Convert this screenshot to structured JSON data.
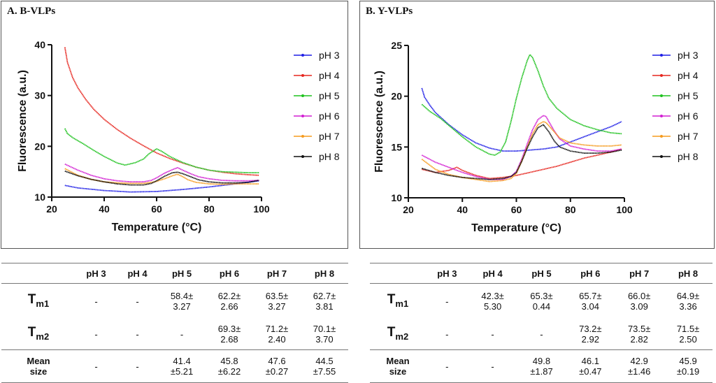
{
  "chart_data": [
    {
      "id": "A",
      "type": "line",
      "title": "A. B-VLPs",
      "xlabel": "Temperature (°C)",
      "ylabel": "Fluorescence (a.u.)",
      "xlim": [
        20,
        100
      ],
      "ylim": [
        10,
        40
      ],
      "xticks": [
        "20",
        "40",
        "60",
        "80",
        "100"
      ],
      "yticks": [
        "10",
        "20",
        "30",
        "40"
      ],
      "series": [
        {
          "name": "pH 3",
          "color": "#1f1fe6",
          "x": [
            25,
            30,
            40,
            50,
            60,
            70,
            80,
            90,
            99
          ],
          "y": [
            12.3,
            11.8,
            11.3,
            11.0,
            11.1,
            11.5,
            12.0,
            12.6,
            13.2
          ]
        },
        {
          "name": "pH 4",
          "color": "#e6261f",
          "x": [
            25,
            26,
            28,
            30,
            33,
            36,
            40,
            45,
            50,
            55,
            60,
            65,
            70,
            75,
            80,
            85,
            90,
            95,
            99
          ],
          "y": [
            39.5,
            36.5,
            33.5,
            31.5,
            29.2,
            27.3,
            25.3,
            23.3,
            21.6,
            20.1,
            18.7,
            17.6,
            16.7,
            15.9,
            15.3,
            14.9,
            14.6,
            14.4,
            14.3
          ]
        },
        {
          "name": "pH 5",
          "color": "#1fc21f",
          "x": [
            25,
            26,
            28,
            32,
            36,
            40,
            45,
            48,
            52,
            55,
            57,
            60,
            62,
            65,
            70,
            75,
            80,
            85,
            90,
            95,
            99
          ],
          "y": [
            23.5,
            22.5,
            21.7,
            20.5,
            19.2,
            18.0,
            16.7,
            16.3,
            16.8,
            17.5,
            18.5,
            19.5,
            19.0,
            18.0,
            16.8,
            15.9,
            15.3,
            15.0,
            14.9,
            14.8,
            14.8
          ]
        },
        {
          "name": "pH 6",
          "color": "#d21fd2",
          "x": [
            25,
            30,
            35,
            40,
            45,
            50,
            55,
            58,
            60,
            63,
            66,
            68,
            70,
            73,
            76,
            80,
            85,
            90,
            95,
            99
          ],
          "y": [
            16.5,
            15.3,
            14.3,
            13.6,
            13.2,
            13.0,
            13.0,
            13.3,
            13.8,
            14.7,
            15.4,
            15.8,
            15.3,
            14.6,
            14.0,
            13.6,
            13.3,
            13.2,
            13.2,
            13.3
          ]
        },
        {
          "name": "pH 7",
          "color": "#f59b1f",
          "x": [
            25,
            30,
            35,
            40,
            45,
            50,
            55,
            58,
            60,
            63,
            66,
            68,
            70,
            72,
            75,
            80,
            85,
            90,
            95,
            99
          ],
          "y": [
            15.6,
            14.3,
            13.5,
            13.0,
            12.8,
            12.7,
            12.7,
            12.9,
            13.1,
            13.6,
            14.2,
            14.5,
            14.0,
            13.4,
            12.9,
            12.6,
            12.5,
            12.6,
            12.6,
            12.6
          ]
        },
        {
          "name": "pH 8",
          "color": "#111111",
          "x": [
            25,
            30,
            35,
            40,
            45,
            50,
            55,
            58,
            60,
            63,
            66,
            68,
            70,
            73,
            76,
            80,
            85,
            90,
            95,
            99
          ],
          "y": [
            15.1,
            14.2,
            13.5,
            13.0,
            12.6,
            12.4,
            12.4,
            12.7,
            13.2,
            14.1,
            14.8,
            14.9,
            14.6,
            14.0,
            13.4,
            13.0,
            12.8,
            12.8,
            12.9,
            13.3
          ]
        }
      ]
    },
    {
      "id": "B",
      "type": "line",
      "title": "B. Y-VLPs",
      "xlabel": "Temperature (°C)",
      "ylabel": "Fluorescence (a.u.)",
      "xlim": [
        20,
        100
      ],
      "ylim": [
        10,
        25
      ],
      "xticks": [
        "20",
        "40",
        "60",
        "80",
        "100"
      ],
      "yticks": [
        "10",
        "15",
        "20",
        "25"
      ],
      "series": [
        {
          "name": "pH 3",
          "color": "#1f1fe6",
          "x": [
            25,
            26,
            28,
            30,
            35,
            40,
            45,
            50,
            55,
            60,
            65,
            70,
            75,
            80,
            85,
            90,
            95,
            99
          ],
          "y": [
            20.8,
            19.9,
            19.1,
            18.4,
            17.2,
            16.2,
            15.4,
            14.9,
            14.6,
            14.6,
            14.7,
            14.8,
            15.0,
            15.5,
            16.0,
            16.5,
            17.0,
            17.5
          ]
        },
        {
          "name": "pH 4",
          "color": "#e6261f",
          "x": [
            25,
            30,
            35,
            38,
            40,
            45,
            50,
            55,
            60,
            65,
            70,
            75,
            80,
            85,
            90,
            95,
            99
          ],
          "y": [
            12.8,
            12.5,
            12.7,
            13.0,
            12.7,
            12.2,
            11.9,
            12.0,
            12.2,
            12.5,
            12.8,
            13.1,
            13.5,
            13.9,
            14.2,
            14.5,
            14.8
          ]
        },
        {
          "name": "pH 5",
          "color": "#1fc21f",
          "x": [
            25,
            28,
            32,
            36,
            40,
            45,
            50,
            52,
            54,
            56,
            58,
            60,
            62,
            64,
            65,
            66,
            68,
            70,
            72,
            75,
            80,
            85,
            90,
            95,
            99
          ],
          "y": [
            19.2,
            18.5,
            17.8,
            16.9,
            16.0,
            15.0,
            14.3,
            14.2,
            14.5,
            15.5,
            17.5,
            19.8,
            21.8,
            23.5,
            24.1,
            23.8,
            22.5,
            21.0,
            19.8,
            18.8,
            17.7,
            17.1,
            16.7,
            16.4,
            16.3
          ]
        },
        {
          "name": "pH 6",
          "color": "#d21fd2",
          "x": [
            25,
            30,
            35,
            40,
            45,
            50,
            55,
            58,
            60,
            62,
            64,
            66,
            68,
            70,
            71,
            72,
            74,
            76,
            80,
            85,
            90,
            95,
            99
          ],
          "y": [
            14.2,
            13.5,
            13.0,
            12.5,
            12.1,
            11.8,
            11.8,
            12.1,
            12.6,
            13.8,
            15.3,
            16.7,
            17.7,
            18.1,
            18.0,
            17.5,
            16.6,
            15.8,
            15.1,
            14.8,
            14.6,
            14.6,
            14.8
          ]
        },
        {
          "name": "pH 7",
          "color": "#f59b1f",
          "x": [
            25,
            30,
            35,
            40,
            45,
            50,
            55,
            58,
            60,
            62,
            64,
            66,
            68,
            70,
            71,
            72,
            74,
            76,
            80,
            85,
            90,
            95,
            99
          ],
          "y": [
            13.8,
            12.8,
            12.3,
            12.0,
            11.8,
            11.6,
            11.7,
            11.9,
            12.4,
            13.6,
            15.0,
            16.3,
            17.2,
            17.5,
            17.4,
            17.1,
            16.5,
            15.9,
            15.4,
            15.2,
            15.1,
            15.1,
            15.2
          ]
        },
        {
          "name": "pH 8",
          "color": "#111111",
          "x": [
            25,
            30,
            35,
            40,
            45,
            50,
            55,
            58,
            60,
            62,
            64,
            66,
            68,
            70,
            72,
            74,
            76,
            80,
            85,
            90,
            95,
            99
          ],
          "y": [
            12.9,
            12.5,
            12.2,
            12.0,
            11.9,
            11.8,
            11.9,
            12.1,
            12.5,
            13.6,
            14.9,
            16.0,
            16.9,
            17.2,
            16.5,
            15.6,
            15.0,
            14.6,
            14.4,
            14.4,
            14.5,
            14.7
          ]
        }
      ]
    }
  ],
  "tables": {
    "A": {
      "headers": [
        "pH 3",
        "pH 4",
        "pH 5",
        "pH 6",
        "pH 7",
        "pH 8"
      ],
      "tm1": {
        "label": "T",
        "sub": "m1",
        "cells": [
          "-",
          "-",
          "58.4±\n3.27",
          "62.2±\n2.66",
          "63.5±\n3.27",
          "62.7±\n3.81"
        ]
      },
      "tm2": {
        "label": "T",
        "sub": "m2",
        "cells": [
          "-",
          "-",
          "-",
          "69.3±\n2.68",
          "71.2±\n2.40",
          "70.1±\n3.70"
        ]
      },
      "mean": {
        "label": "Mean\nsize",
        "cells": [
          "-",
          "-",
          "41.4\n±5.21",
          "45.8\n±6.22",
          "47.6\n±0.27",
          "44.5\n±7.55"
        ]
      }
    },
    "B": {
      "headers": [
        "pH 3",
        "pH 4",
        "pH 5",
        "pH 6",
        "pH 7",
        "pH 8"
      ],
      "tm1": {
        "label": "T",
        "sub": "m1",
        "cells": [
          "-",
          "42.3±\n5.30",
          "65.3±\n0.44",
          "65.7±\n3.04",
          "66.0±\n3.09",
          "64.9±\n3.36"
        ]
      },
      "tm2": {
        "label": "T",
        "sub": "m2",
        "cells": [
          "-",
          "-",
          "-",
          "73.2±\n2.92",
          "73.5±\n2.82",
          "71.5±\n2.50"
        ]
      },
      "mean": {
        "label": "Mean\nsize",
        "cells": [
          "-",
          "-",
          "49.8\n±1.87",
          "46.1\n±0.47",
          "42.9\n±1.46",
          "45.9\n±0.19"
        ]
      }
    }
  }
}
